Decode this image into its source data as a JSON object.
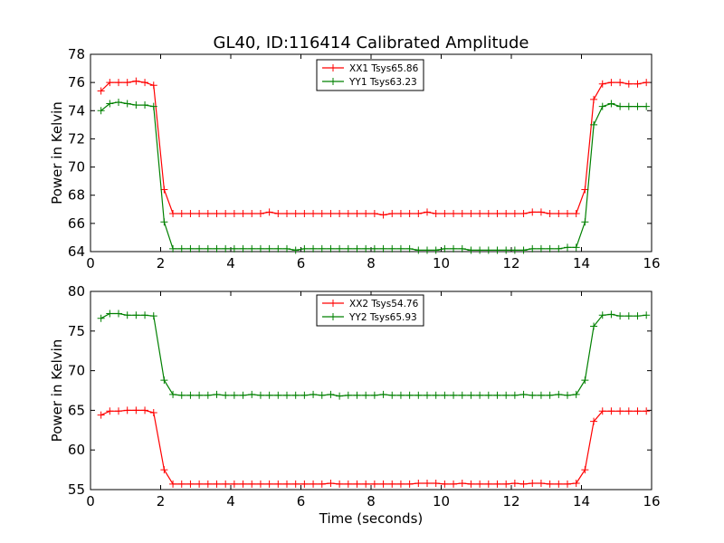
{
  "title": "GL40, ID:116414 Calibrated Amplitude",
  "colors": {
    "xx": "#ff0000",
    "yy": "#008000"
  },
  "chart_data": [
    {
      "type": "line",
      "title": "GL40, ID:116414 Calibrated Amplitude",
      "xlabel": "",
      "ylabel": "Power in Kelvin",
      "xlim": [
        0,
        16
      ],
      "ylim": [
        64,
        78
      ],
      "xticks": [
        0,
        2,
        4,
        6,
        8,
        10,
        12,
        14,
        16
      ],
      "yticks": [
        64,
        66,
        68,
        70,
        72,
        74,
        76,
        78
      ],
      "grid": false,
      "legend_position": "top-center",
      "x": [
        0.3,
        0.55,
        0.8,
        1.05,
        1.3,
        1.55,
        1.8,
        2.1,
        2.35,
        2.6,
        2.85,
        3.1,
        3.35,
        3.6,
        3.85,
        4.1,
        4.35,
        4.6,
        4.85,
        5.1,
        5.35,
        5.6,
        5.85,
        6.1,
        6.35,
        6.6,
        6.85,
        7.1,
        7.35,
        7.6,
        7.85,
        8.1,
        8.35,
        8.6,
        8.85,
        9.1,
        9.35,
        9.6,
        9.85,
        10.1,
        10.35,
        10.6,
        10.85,
        11.1,
        11.35,
        11.6,
        11.85,
        12.1,
        12.35,
        12.6,
        12.85,
        13.1,
        13.35,
        13.6,
        13.85,
        14.1,
        14.35,
        14.6,
        14.85,
        15.1,
        15.35,
        15.6,
        15.85
      ],
      "series": [
        {
          "name": "XX1 Tsys65.86",
          "color": "#ff0000",
          "values": [
            75.4,
            76.0,
            76.0,
            76.0,
            76.1,
            76.0,
            75.8,
            68.4,
            66.7,
            66.7,
            66.7,
            66.7,
            66.7,
            66.7,
            66.7,
            66.7,
            66.7,
            66.7,
            66.7,
            66.8,
            66.7,
            66.7,
            66.7,
            66.7,
            66.7,
            66.7,
            66.7,
            66.7,
            66.7,
            66.7,
            66.7,
            66.7,
            66.6,
            66.7,
            66.7,
            66.7,
            66.7,
            66.8,
            66.7,
            66.7,
            66.7,
            66.7,
            66.7,
            66.7,
            66.7,
            66.7,
            66.7,
            66.7,
            66.7,
            66.8,
            66.8,
            66.7,
            66.7,
            66.7,
            66.7,
            68.4,
            74.8,
            75.9,
            76.0,
            76.0,
            75.9,
            75.9,
            76.0
          ]
        },
        {
          "name": "YY1 Tsys63.23",
          "color": "#008000",
          "values": [
            74.0,
            74.5,
            74.6,
            74.5,
            74.4,
            74.4,
            74.3,
            66.1,
            64.2,
            64.2,
            64.2,
            64.2,
            64.2,
            64.2,
            64.2,
            64.2,
            64.2,
            64.2,
            64.2,
            64.2,
            64.2,
            64.2,
            64.1,
            64.2,
            64.2,
            64.2,
            64.2,
            64.2,
            64.2,
            64.2,
            64.2,
            64.2,
            64.2,
            64.2,
            64.2,
            64.2,
            64.1,
            64.1,
            64.1,
            64.2,
            64.2,
            64.2,
            64.1,
            64.1,
            64.1,
            64.1,
            64.1,
            64.1,
            64.1,
            64.2,
            64.2,
            64.2,
            64.2,
            64.3,
            64.3,
            66.1,
            73.0,
            74.3,
            74.5,
            74.3,
            74.3,
            74.3,
            74.3
          ]
        }
      ]
    },
    {
      "type": "line",
      "title": "",
      "xlabel": "Time (seconds)",
      "ylabel": "Power in Kelvin",
      "xlim": [
        0,
        16
      ],
      "ylim": [
        55,
        80
      ],
      "xticks": [
        0,
        2,
        4,
        6,
        8,
        10,
        12,
        14,
        16
      ],
      "yticks": [
        55,
        60,
        65,
        70,
        75,
        80
      ],
      "grid": false,
      "legend_position": "top-center",
      "x": [
        0.3,
        0.55,
        0.8,
        1.05,
        1.3,
        1.55,
        1.8,
        2.1,
        2.35,
        2.6,
        2.85,
        3.1,
        3.35,
        3.6,
        3.85,
        4.1,
        4.35,
        4.6,
        4.85,
        5.1,
        5.35,
        5.6,
        5.85,
        6.1,
        6.35,
        6.6,
        6.85,
        7.1,
        7.35,
        7.6,
        7.85,
        8.1,
        8.35,
        8.6,
        8.85,
        9.1,
        9.35,
        9.6,
        9.85,
        10.1,
        10.35,
        10.6,
        10.85,
        11.1,
        11.35,
        11.6,
        11.85,
        12.1,
        12.35,
        12.6,
        12.85,
        13.1,
        13.35,
        13.6,
        13.85,
        14.1,
        14.35,
        14.6,
        14.85,
        15.1,
        15.35,
        15.6,
        15.85
      ],
      "series": [
        {
          "name": "XX2 Tsys54.76",
          "color": "#ff0000",
          "values": [
            64.4,
            64.9,
            64.9,
            65.0,
            65.0,
            65.0,
            64.7,
            57.5,
            55.7,
            55.7,
            55.7,
            55.7,
            55.7,
            55.7,
            55.7,
            55.7,
            55.7,
            55.7,
            55.7,
            55.7,
            55.7,
            55.7,
            55.7,
            55.7,
            55.7,
            55.7,
            55.8,
            55.7,
            55.7,
            55.7,
            55.7,
            55.7,
            55.7,
            55.7,
            55.7,
            55.7,
            55.8,
            55.8,
            55.8,
            55.7,
            55.7,
            55.8,
            55.7,
            55.7,
            55.7,
            55.7,
            55.7,
            55.8,
            55.7,
            55.8,
            55.8,
            55.7,
            55.7,
            55.7,
            55.8,
            57.5,
            63.6,
            64.9,
            64.9,
            64.9,
            64.9,
            64.9,
            64.9
          ]
        },
        {
          "name": "YY2 Tsys65.93",
          "color": "#008000",
          "values": [
            76.6,
            77.2,
            77.2,
            77.0,
            77.0,
            77.0,
            76.9,
            68.8,
            67.0,
            66.9,
            66.9,
            66.9,
            66.9,
            67.0,
            66.9,
            66.9,
            66.9,
            67.0,
            66.9,
            66.9,
            66.9,
            66.9,
            66.9,
            66.9,
            67.0,
            66.9,
            67.0,
            66.8,
            66.9,
            66.9,
            66.9,
            66.9,
            67.0,
            66.9,
            66.9,
            66.9,
            66.9,
            66.9,
            66.9,
            66.9,
            66.9,
            66.9,
            66.9,
            66.9,
            66.9,
            66.9,
            66.9,
            66.9,
            67.0,
            66.9,
            66.9,
            66.9,
            67.0,
            66.9,
            67.0,
            68.8,
            75.6,
            77.0,
            77.1,
            76.9,
            76.9,
            76.9,
            77.0
          ]
        }
      ]
    }
  ]
}
